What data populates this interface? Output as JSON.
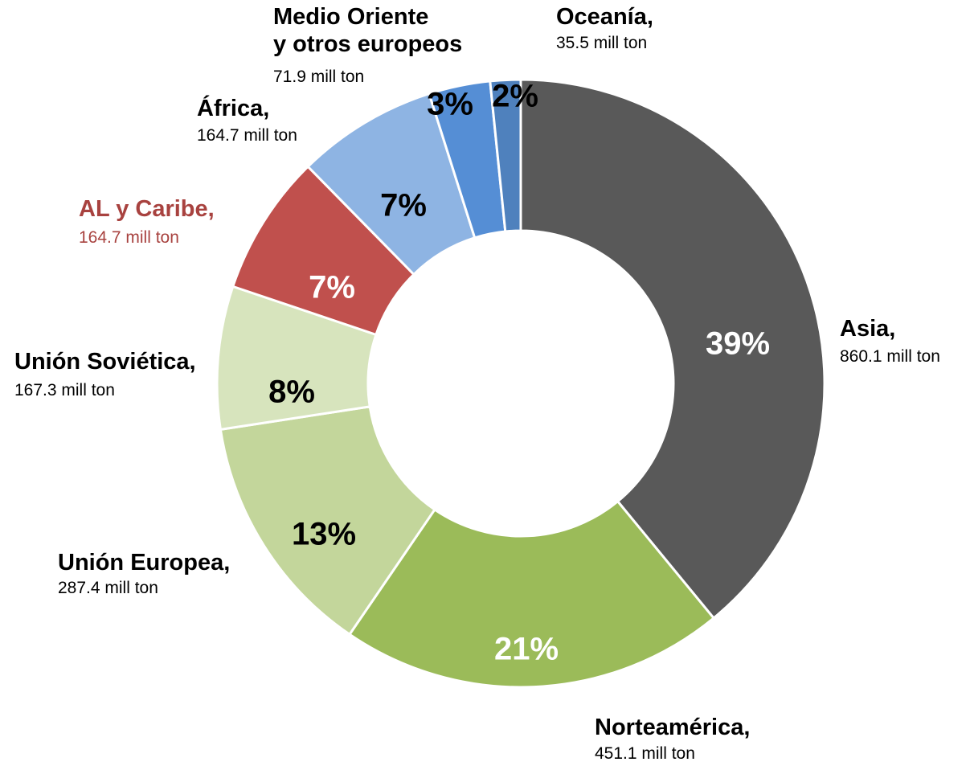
{
  "chart_data": {
    "type": "donut",
    "categories": [
      "Asia,",
      "Norteamérica,",
      "Unión Europea,",
      "Unión Soviética,",
      "AL y Caribe,",
      "África,",
      "Medio Oriente\ny otros europeos",
      "Oceanía,"
    ],
    "values": [
      860.1,
      451.1,
      287.4,
      167.3,
      164.7,
      164.7,
      71.9,
      35.5
    ],
    "value_labels": [
      "860.1 mill ton",
      "451.1 mill ton",
      "287.4 mill ton",
      "167.3 mill ton",
      "164.7 mill ton",
      "164.7 mill ton",
      "71.9 mill ton",
      "35.5 mill ton"
    ],
    "percent_labels": [
      "39%",
      "21%",
      "13%",
      "8%",
      "7%",
      "7%",
      "3%",
      "2%"
    ],
    "colors": [
      "#595959",
      "#9bbb59",
      "#c3d69b",
      "#d7e4bd",
      "#c0504d",
      "#8eb4e3",
      "#558ed5",
      "#4f81bd"
    ]
  }
}
